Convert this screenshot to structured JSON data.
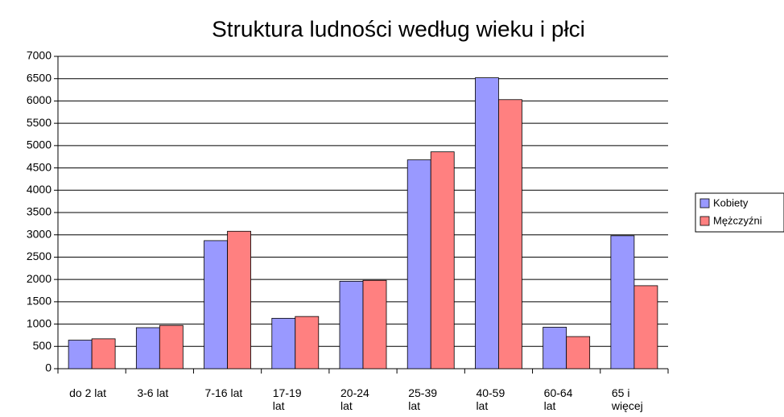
{
  "chart_data": {
    "type": "bar",
    "title": "Struktura ludności według wieku i płci",
    "categories": [
      "do 2 lat",
      "3-6 lat",
      "7-16 lat",
      "17-19 lat",
      "20-24 lat",
      "25-39 lat",
      "40-59 lat",
      "60-64 lat",
      "65 i więcej"
    ],
    "series": [
      {
        "name": "Kobiety",
        "color": "#9999ff",
        "values": [
          640,
          920,
          2870,
          1130,
          1960,
          4680,
          6520,
          930,
          2980
        ]
      },
      {
        "name": "Mężczyźni",
        "color": "#ff8080",
        "values": [
          670,
          970,
          3080,
          1170,
          1980,
          4860,
          6030,
          720,
          1860
        ]
      }
    ],
    "ylim": [
      0,
      7000
    ],
    "yticks": [
      0,
      500,
      1000,
      1500,
      2000,
      2500,
      3000,
      3500,
      4000,
      4500,
      5000,
      5500,
      6000,
      6500,
      7000
    ],
    "grid": true,
    "legend": "right"
  }
}
